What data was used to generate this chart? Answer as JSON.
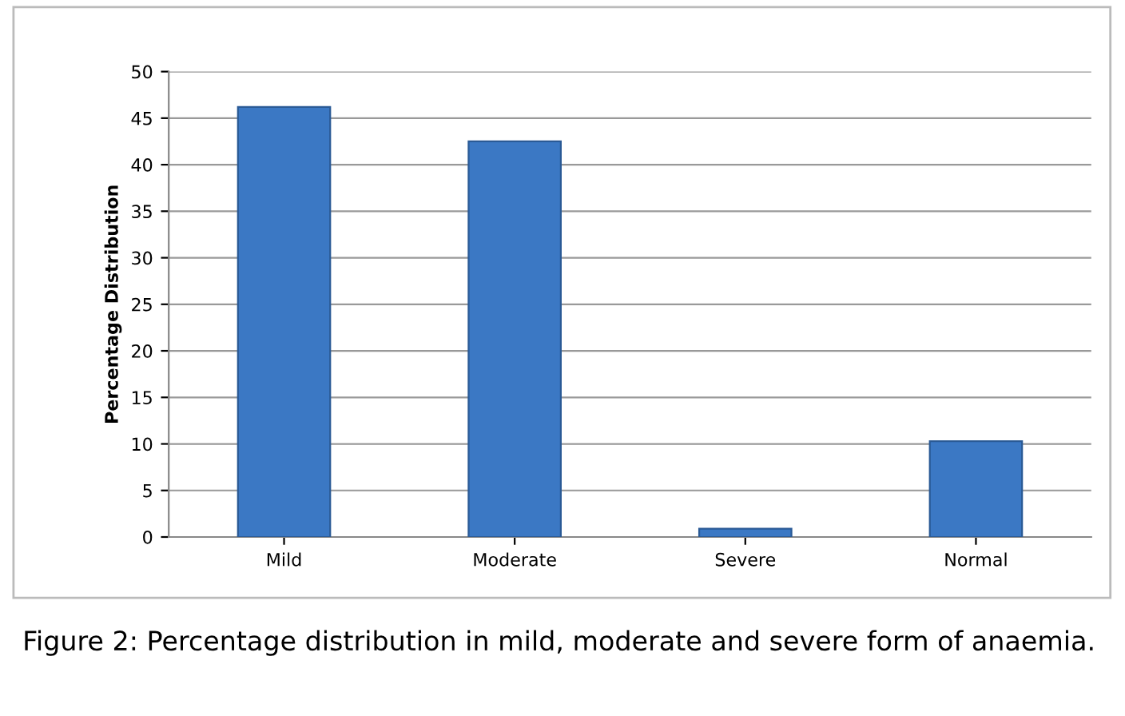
{
  "chart_data": {
    "type": "bar",
    "ylabel": "Percentage Distribution",
    "categories": [
      "Mild",
      "Moderate",
      "Severe",
      "Normal"
    ],
    "values": [
      46.2,
      42.5,
      0.9,
      10.3
    ],
    "color": "#3b78c4",
    "ylim": [
      0,
      50
    ],
    "yticks": [
      0,
      5,
      10,
      15,
      20,
      25,
      30,
      35,
      40,
      45,
      50
    ],
    "grid": "y",
    "annotations": [
      "Figure 2: Percentage distribution in mild, moderate and severe form of anaemia."
    ]
  }
}
